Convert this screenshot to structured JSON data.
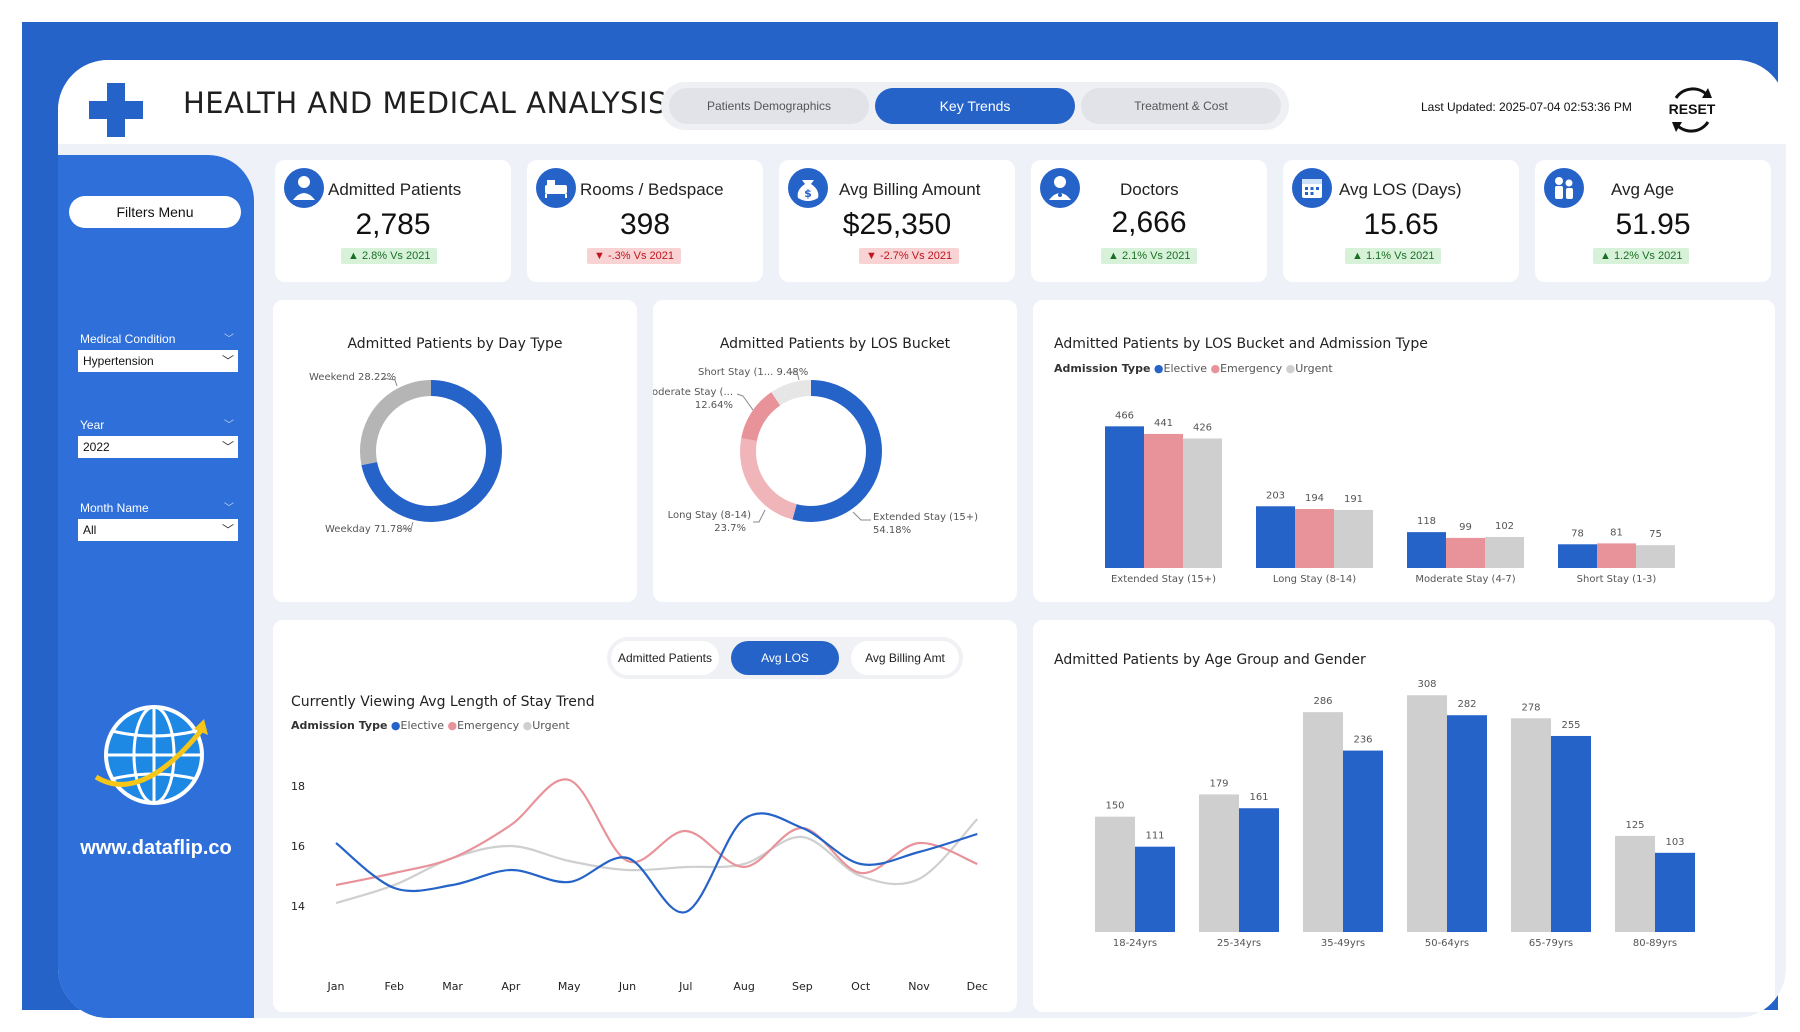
{
  "header": {
    "title": "HEALTH AND MEDICAL ANALYSIS",
    "tabs": [
      "Patients Demographics",
      "Key Trends",
      "Treatment & Cost"
    ],
    "active_tab": "Key Trends",
    "last_updated": "Last Updated: 2025-07-04 02:53:36 PM",
    "reset_label": "RESET"
  },
  "sidebar": {
    "filters_label": "Filters Menu",
    "filters": [
      {
        "label": "Medical Condition",
        "value": "Hypertension"
      },
      {
        "label": "Year",
        "value": "2022"
      },
      {
        "label": "Month Name",
        "value": "All"
      }
    ],
    "website": "www.dataflip.co"
  },
  "kpis": [
    {
      "label": "Admitted Patients",
      "value": "2,785",
      "change": "▲ 2.8% Vs 2021",
      "direction": "up",
      "icon": "patient-icon"
    },
    {
      "label": "Rooms / Bedspace",
      "value": "398",
      "change": "▼ -.3% Vs 2021",
      "direction": "down",
      "icon": "bed-icon"
    },
    {
      "label": "Avg Billing Amount",
      "value": "$25,350",
      "change": "▼ -2.7% Vs 2021",
      "direction": "down",
      "icon": "money-bag-icon"
    },
    {
      "label": "Doctors",
      "value": "2,666",
      "change": "▲ 2.1% Vs 2021",
      "direction": "up",
      "icon": "doctor-icon"
    },
    {
      "label": "Avg LOS (Days)",
      "value": "15.65",
      "change": "▲ 1.1% Vs 2021",
      "direction": "up",
      "icon": "calendar-icon"
    },
    {
      "label": "Avg Age",
      "value": "51.95",
      "change": "▲ 1.2% Vs 2021",
      "direction": "up",
      "icon": "family-icon"
    }
  ],
  "colors": {
    "elective": "#2563c8",
    "emergency": "#e8939a",
    "urgent": "#cfcfcf",
    "accent": "#2563c8"
  },
  "legend": {
    "title": "Admission Type",
    "items": [
      "Elective",
      "Emergency",
      "Urgent"
    ]
  },
  "line_section": {
    "toggle": [
      "Admitted Patients",
      "Avg LOS",
      "Avg Billing Amt"
    ],
    "active": "Avg LOS"
  },
  "chart_data": [
    {
      "id": "day-type",
      "type": "pie",
      "title": "Admitted Patients by Day Type",
      "labels": [
        "Weekday",
        "Weekend"
      ],
      "values": [
        71.78,
        28.22
      ],
      "display_labels": [
        "Weekday 71.78%",
        "Weekend 28.22%"
      ],
      "colors": [
        "#2563c8",
        "#b5b5b5"
      ]
    },
    {
      "id": "los-bucket",
      "type": "pie",
      "title": "Admitted Patients by LOS Bucket",
      "labels": [
        "Extended Stay (15+)",
        "Long Stay (8-14)",
        "Moderate Stay (4-7)",
        "Short Stay (1-3)"
      ],
      "values": [
        54.18,
        23.7,
        12.64,
        9.48
      ],
      "display_labels": [
        [
          "Extended Stay (15+)",
          "54.18%"
        ],
        [
          "Long Stay (8-14)",
          "23.7%"
        ],
        [
          "Moderate Stay (...",
          "12.64%"
        ],
        [
          "Short Stay (1... 9.48%"
        ]
      ],
      "colors": [
        "#2563c8",
        "#f0b5b9",
        "#e8939a",
        "#e6e6e6"
      ]
    },
    {
      "id": "los-admission",
      "type": "bar",
      "title": "Admitted Patients by LOS Bucket and Admission Type",
      "categories": [
        "Extended Stay (15+)",
        "Long Stay (8-14)",
        "Moderate Stay (4-7)",
        "Short Stay (1-3)"
      ],
      "series": [
        {
          "name": "Elective",
          "values": [
            466,
            203,
            118,
            78
          ]
        },
        {
          "name": "Emergency",
          "values": [
            441,
            194,
            99,
            81
          ]
        },
        {
          "name": "Urgent",
          "values": [
            426,
            191,
            102,
            75
          ]
        }
      ],
      "ylim": [
        0,
        500
      ]
    },
    {
      "id": "los-trend",
      "type": "line",
      "title": "Currently Viewing Avg Length of Stay Trend",
      "x": [
        "Jan",
        "Feb",
        "Mar",
        "Apr",
        "May",
        "Jun",
        "Jul",
        "Aug",
        "Sep",
        "Oct",
        "Nov",
        "Dec"
      ],
      "yticks": [
        14,
        16,
        18
      ],
      "ylim": [
        13.2,
        19.2
      ],
      "series": [
        {
          "name": "Elective",
          "values": [
            16.1,
            14.6,
            14.7,
            15.2,
            14.8,
            15.6,
            13.8,
            16.9,
            16.6,
            15.4,
            15.8,
            16.4
          ]
        },
        {
          "name": "Emergency",
          "values": [
            14.7,
            15.1,
            15.6,
            16.7,
            18.2,
            15.5,
            16.5,
            15.3,
            16.6,
            15.1,
            16.1,
            15.4
          ]
        },
        {
          "name": "Urgent",
          "values": [
            14.1,
            14.7,
            15.6,
            16.0,
            15.5,
            15.2,
            15.3,
            15.4,
            16.3,
            15.0,
            14.9,
            16.9
          ]
        }
      ]
    },
    {
      "id": "age-gender",
      "type": "bar",
      "title": "Admitted Patients by Age Group and Gender",
      "categories": [
        "18-24yrs",
        "25-34yrs",
        "35-49yrs",
        "50-64yrs",
        "65-79yrs",
        "80-89yrs"
      ],
      "series": [
        {
          "values": [
            150,
            179,
            286,
            308,
            278,
            125
          ]
        },
        {
          "values": [
            111,
            161,
            236,
            282,
            255,
            103
          ]
        }
      ],
      "ylim": [
        0,
        320
      ]
    }
  ]
}
